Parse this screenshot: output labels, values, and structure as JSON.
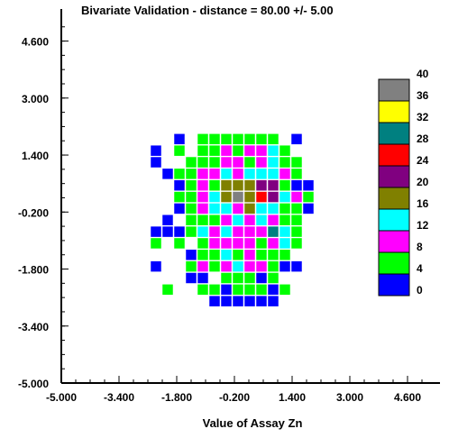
{
  "chart_data": {
    "type": "heatmap",
    "title": "Bivariate Validation - distance = 80.00 +/- 5.00",
    "xlabel": "Value of Assay Zn",
    "ylabel": "",
    "xlim": [
      -5.0,
      5.5
    ],
    "ylim": [
      -5.0,
      5.5
    ],
    "x_ticks": [
      "-5.000",
      "-3.400",
      "-1.800",
      "-0.200",
      "1.400",
      "3.000",
      "4.600"
    ],
    "y_ticks": [
      "4.600",
      "3.000",
      "1.400",
      "-0.200",
      "-1.800",
      "-3.400",
      "-5.000"
    ],
    "cell_size": 0.325,
    "legend": {
      "position": "right",
      "bins": [
        {
          "label": "40",
          "color": "#808080"
        },
        {
          "label": "36",
          "color": "#ffff00"
        },
        {
          "label": "32",
          "color": "#008080"
        },
        {
          "label": "28",
          "color": "#ff0000"
        },
        {
          "label": "24",
          "color": "#800080"
        },
        {
          "label": "20",
          "color": "#808000"
        },
        {
          "label": "16",
          "color": "#00ffff"
        },
        {
          "label": "12",
          "color": "#ff00ff"
        },
        {
          "label": "8",
          "color": "#00ff00"
        },
        {
          "label": "4",
          "color": "#0000ff"
        },
        {
          "label": "0",
          "color": ""
        }
      ]
    },
    "columns_x": [
      -2.375,
      -2.05,
      -1.725,
      -1.4,
      -1.075,
      -0.75,
      -0.425,
      -0.1,
      0.225,
      0.55,
      0.875,
      1.2,
      1.525,
      1.85
    ],
    "rows": [
      {
        "y": 1.85,
        "cells": [
          0,
          0,
          4,
          0,
          8,
          8,
          8,
          8,
          8,
          8,
          8,
          0,
          4,
          0
        ]
      },
      {
        "y": 1.525,
        "cells": [
          4,
          0,
          8,
          0,
          8,
          8,
          12,
          8,
          12,
          12,
          16,
          8,
          0,
          0
        ]
      },
      {
        "y": 1.2,
        "cells": [
          4,
          0,
          0,
          8,
          8,
          8,
          12,
          12,
          8,
          12,
          16,
          8,
          8,
          0
        ]
      },
      {
        "y": 0.875,
        "cells": [
          0,
          4,
          8,
          8,
          12,
          12,
          16,
          12,
          16,
          16,
          16,
          12,
          8,
          0
        ]
      },
      {
        "y": 0.55,
        "cells": [
          0,
          0,
          4,
          8,
          12,
          8,
          20,
          20,
          20,
          24,
          24,
          8,
          4,
          4
        ]
      },
      {
        "y": 0.225,
        "cells": [
          0,
          0,
          8,
          8,
          12,
          16,
          20,
          40,
          20,
          28,
          24,
          16,
          12,
          8
        ]
      },
      {
        "y": -0.1,
        "cells": [
          0,
          0,
          4,
          8,
          12,
          16,
          16,
          12,
          20,
          16,
          16,
          8,
          8,
          4
        ]
      },
      {
        "y": -0.425,
        "cells": [
          0,
          4,
          0,
          8,
          8,
          8,
          12,
          16,
          12,
          16,
          12,
          8,
          8,
          0
        ]
      },
      {
        "y": -0.75,
        "cells": [
          4,
          4,
          4,
          8,
          16,
          12,
          16,
          12,
          12,
          12,
          32,
          16,
          8,
          0
        ]
      },
      {
        "y": -1.075,
        "cells": [
          8,
          0,
          8,
          0,
          8,
          12,
          12,
          12,
          12,
          8,
          12,
          16,
          8,
          0
        ]
      },
      {
        "y": -1.4,
        "cells": [
          0,
          0,
          0,
          4,
          8,
          8,
          16,
          8,
          12,
          8,
          8,
          8,
          0,
          0
        ]
      },
      {
        "y": -1.725,
        "cells": [
          4,
          0,
          0,
          8,
          12,
          8,
          12,
          16,
          12,
          12,
          8,
          4,
          4,
          0
        ]
      },
      {
        "y": -2.05,
        "cells": [
          0,
          0,
          0,
          4,
          4,
          0,
          8,
          8,
          8,
          4,
          8,
          0,
          0,
          0
        ]
      },
      {
        "y": -2.375,
        "cells": [
          0,
          8,
          0,
          0,
          8,
          8,
          4,
          8,
          8,
          8,
          4,
          8,
          0,
          0
        ]
      },
      {
        "y": -2.7,
        "cells": [
          0,
          0,
          0,
          0,
          0,
          4,
          4,
          4,
          4,
          4,
          4,
          0,
          0,
          0
        ]
      }
    ]
  }
}
